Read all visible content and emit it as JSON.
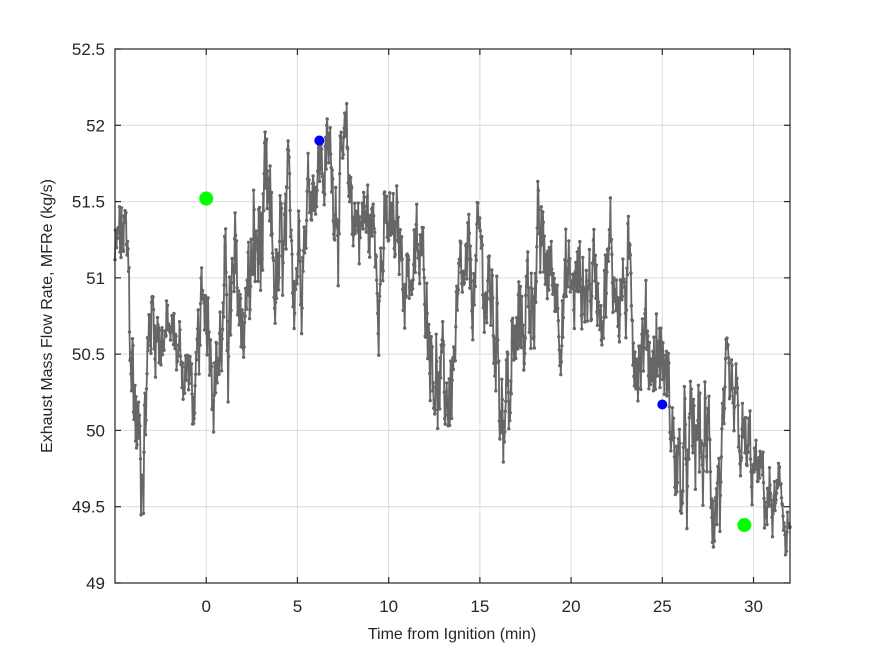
{
  "chart_data": {
    "type": "line",
    "title": "",
    "xlabel": "Time from Ignition (min)",
    "ylabel": "Exhaust Mass Flow Rate, MFRe (kg/s)",
    "xlim": [
      -5,
      32
    ],
    "ylim": [
      49,
      52.5
    ],
    "grid": true,
    "legend": null,
    "xticks": [
      0,
      5,
      10,
      15,
      20,
      25,
      30
    ],
    "xtick_labels": [
      "0",
      "5",
      "10",
      "15",
      "20",
      "25",
      "30"
    ],
    "yticks": [
      49,
      49.5,
      50,
      50.5,
      51,
      51.5,
      52,
      52.5
    ],
    "ytick_labels": [
      "49",
      "49.5",
      "50",
      "50.5",
      "51",
      "51.5",
      "52",
      "52.5"
    ],
    "series": [
      {
        "name": "MFRe",
        "color": "#666666",
        "marker": "dot",
        "description": "Noisy time series sampled densely; envelope anchor points (x, approx. local mean, local amplitude) listed below",
        "anchors": [
          [
            -5.0,
            51.1,
            0.35
          ],
          [
            -4.5,
            51.2,
            0.45
          ],
          [
            -4.0,
            50.3,
            0.6
          ],
          [
            -3.6,
            49.8,
            0.5
          ],
          [
            -3.0,
            50.8,
            0.4
          ],
          [
            -2.0,
            50.6,
            0.25
          ],
          [
            -1.0,
            50.4,
            0.3
          ],
          [
            -0.6,
            50.1,
            0.3
          ],
          [
            0.0,
            51.0,
            0.45
          ],
          [
            0.5,
            50.5,
            0.35
          ],
          [
            1.0,
            50.7,
            0.5
          ],
          [
            2.0,
            50.8,
            0.5
          ],
          [
            3.0,
            51.2,
            0.6
          ],
          [
            4.0,
            50.9,
            0.5
          ],
          [
            5.0,
            51.3,
            0.45
          ],
          [
            6.0,
            51.8,
            0.35
          ],
          [
            7.0,
            51.7,
            0.4
          ],
          [
            8.0,
            51.5,
            0.4
          ],
          [
            9.0,
            51.3,
            0.4
          ],
          [
            10.0,
            51.2,
            0.4
          ],
          [
            11.0,
            51.1,
            0.35
          ],
          [
            12.0,
            51.0,
            0.35
          ],
          [
            13.0,
            50.1,
            0.4
          ],
          [
            14.0,
            50.7,
            0.4
          ],
          [
            15.0,
            51.1,
            0.35
          ],
          [
            16.0,
            50.6,
            0.5
          ],
          [
            16.5,
            50.2,
            0.6
          ],
          [
            17.0,
            50.5,
            0.4
          ],
          [
            18.0,
            51.1,
            0.45
          ],
          [
            19.0,
            51.0,
            0.35
          ],
          [
            20.0,
            50.9,
            0.4
          ],
          [
            21.0,
            51.0,
            0.4
          ],
          [
            22.0,
            51.1,
            0.4
          ],
          [
            23.0,
            50.9,
            0.4
          ],
          [
            24.0,
            50.6,
            0.4
          ],
          [
            25.0,
            50.5,
            0.4
          ],
          [
            26.0,
            49.6,
            0.4
          ],
          [
            27.0,
            49.9,
            0.5
          ],
          [
            28.0,
            49.7,
            0.5
          ],
          [
            29.0,
            49.9,
            0.4
          ],
          [
            30.0,
            49.7,
            0.3
          ],
          [
            31.0,
            49.5,
            0.25
          ],
          [
            32.0,
            49.4,
            0.2
          ]
        ],
        "num_points": 1350
      }
    ],
    "highlight_points": [
      {
        "x": 0.0,
        "y": 51.52,
        "color": "#00ff00",
        "size": "large"
      },
      {
        "x": 6.2,
        "y": 51.9,
        "color": "#0000ff",
        "size": "small"
      },
      {
        "x": 25.0,
        "y": 50.17,
        "color": "#0000ff",
        "size": "small"
      },
      {
        "x": 29.5,
        "y": 49.38,
        "color": "#00ff00",
        "size": "large"
      }
    ]
  },
  "colors": {
    "trace": "#666666",
    "grid": "#dcdcdc",
    "axes": "#262626",
    "highlight_green": "#00ff00",
    "highlight_blue": "#0000ff"
  }
}
